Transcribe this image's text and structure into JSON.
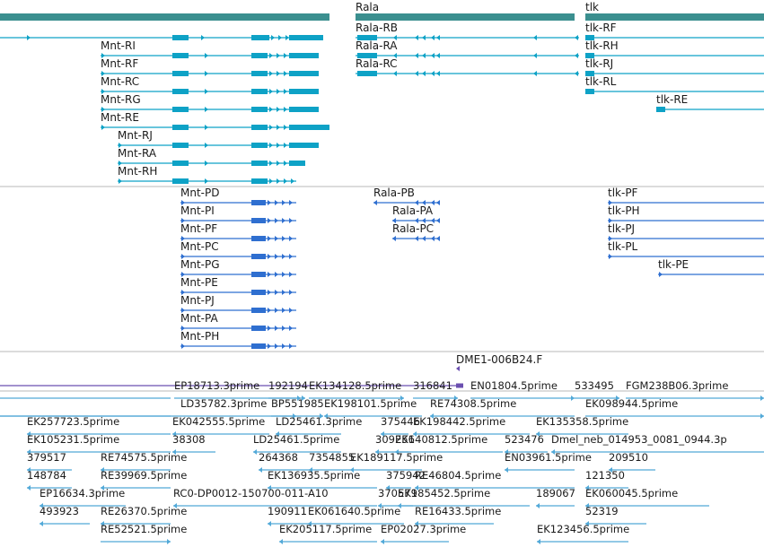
{
  "colors": {
    "gene": "#3b8f8f",
    "transcript": "#0ea2c6",
    "protein": "#2f6fd0",
    "probe": "#6b4fb0",
    "est": "#52a9d8",
    "divider": "#b8b8b8"
  },
  "genes": [
    "Rala",
    "tlk"
  ],
  "transcripts": {
    "mnt": [
      "Mnt-RI",
      "Mnt-RF",
      "Mnt-RC",
      "Mnt-RG",
      "Mnt-RE",
      "Mnt-RJ",
      "Mnt-RA",
      "Mnt-RH"
    ],
    "rala": [
      "Rala-RB",
      "Rala-RA",
      "Rala-RC"
    ],
    "tlk": [
      "tlk-RF",
      "tlk-RH",
      "tlk-RJ",
      "tlk-RL",
      "tlk-RE"
    ]
  },
  "proteins": {
    "mnt": [
      "Mnt-PD",
      "Mnt-PI",
      "Mnt-PF",
      "Mnt-PC",
      "Mnt-PG",
      "Mnt-PE",
      "Mnt-PJ",
      "Mnt-PA",
      "Mnt-PH"
    ],
    "rala": [
      "Rala-PB",
      "Rala-PA",
      "Rala-PC"
    ],
    "tlk": [
      "tlk-PF",
      "tlk-PH",
      "tlk-PJ",
      "tlk-PL",
      "tlk-PE"
    ]
  },
  "probe": "DME1-006B24.F",
  "ests": [
    "EP18713.3prime",
    "192194",
    "EK134128.5prime",
    "316841",
    "EN01804.5prime",
    "533495",
    "FGM238B06.3prime",
    "LD35782.3prime",
    "BP551985",
    "EK198101.5prime",
    "RE74308.5prime",
    "EK098944.5prime",
    "EK257723.5prime",
    "EK042555.5prime",
    "LD25461.3prime",
    "375446",
    "EK198442.5prime",
    "EK135358.5prime",
    "EK105231.5prime",
    "38308",
    "LD25461.5prime",
    "309256",
    "EK140812.5prime",
    "523476",
    "Dmel_neb_014953_0081_0944.3p",
    "379517",
    "RE74575.5prime",
    "264368",
    "7354855",
    "EK189117.5prime",
    "EN03961.5prime",
    "209510",
    "148784",
    "RE39969.5prime",
    "EK136935.5prime",
    "375942",
    "RE46804.5prime",
    "121350",
    "EP16634.3prime",
    "RC0-DP0012-150700-011-A10",
    "370579",
    "EK185452.5prime",
    "189067",
    "EK060045.5prime",
    "493923",
    "RE26370.5prime",
    "190911",
    "EK061640.5prime",
    "RE16433.5prime",
    "52319",
    "RE52521.5prime",
    "EK205117.5prime",
    "EP02027.3prime",
    "EK123456.5prime"
  ]
}
